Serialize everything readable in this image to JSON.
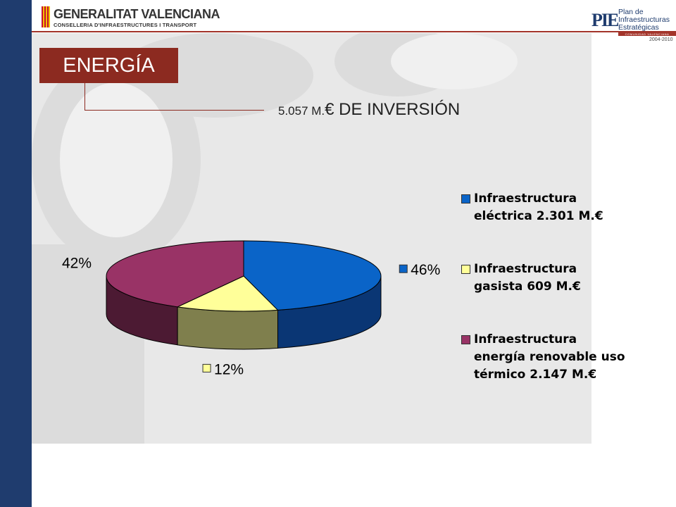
{
  "header": {
    "org_name": "GENERALITAT VALENCIANA",
    "org_department": "CONSELLERIA D'INFRAESTRUCTURES I TRANSPORT",
    "plan_logo": {
      "mark": "PIE",
      "text": "Plan de\nInfraestructuras\nEstratégicas",
      "band": "COMUNIDAD VALENCIANA",
      "years": "2004-2010"
    }
  },
  "slide": {
    "section_title": "ENERGÍA",
    "investment_amount": "5.057 M.",
    "investment_suffix": "€ DE INVERSIÓN"
  },
  "colors": {
    "brand_red": "#8c2a20",
    "side_bar": "#1f3c6e",
    "series_electrica": "#0a64c8",
    "series_gasista": "#ffff99",
    "series_renovable": "#993366"
  },
  "chart_data": {
    "type": "pie",
    "title": "",
    "slices": [
      {
        "name": "Infraestructura\neléctrica 2.301 M.€",
        "value": 46,
        "label": "46%",
        "color": "#0a64c8",
        "side": "#0a3674"
      },
      {
        "name": "Infraestructura\ngasista 609 M.€",
        "value": 12,
        "label": "12%",
        "color": "#ffff99",
        "side": "#7f7f4d"
      },
      {
        "name": "Infraestructura\nenergía renovable uso\ntérmico 2.147 M.€",
        "value": 42,
        "label": "42%",
        "color": "#993366",
        "side": "#4c1a33"
      }
    ],
    "legend_position": "right",
    "style": "3d"
  }
}
